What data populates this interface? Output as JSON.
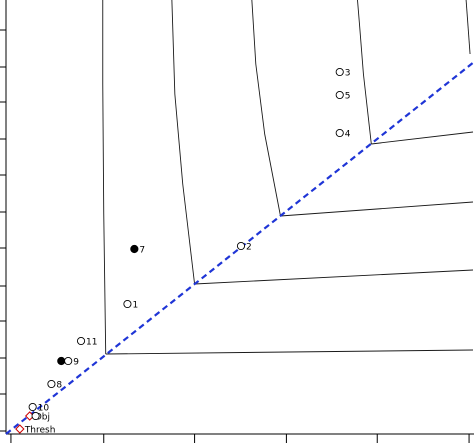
{
  "chart_data": {
    "type": "scatter",
    "title": "",
    "xlabel": "",
    "ylabel": "",
    "xlim": [
      0,
      474
    ],
    "ylim": [
      0,
      434
    ],
    "grid": false,
    "legend": "none",
    "colors": {
      "axis": "#000000",
      "curve": "#1a1a1a",
      "threshold": "#1f35d6",
      "marker_open": "#000000",
      "marker_filled": "#000000",
      "diamond": "#cc0000"
    },
    "threshold_line": {
      "x": [
        0,
        474
      ],
      "y": [
        0,
        372
      ]
    },
    "isolines": [
      {
        "x": [
          101,
          473
        ],
        "y": [
          80,
          84
        ]
      },
      {
        "x": [
          101,
          99,
          98,
          98
        ],
        "y": [
          80,
          220,
          350,
          434
        ]
      },
      {
        "x": [
          191,
          473
        ],
        "y": [
          150,
          164
        ]
      },
      {
        "x": [
          191,
          179,
          171,
          168
        ],
        "y": [
          150,
          250,
          340,
          434
        ]
      },
      {
        "x": [
          278,
          473
        ],
        "y": [
          218,
          232
        ]
      },
      {
        "x": [
          278,
          262,
          253,
          249
        ],
        "y": [
          218,
          300,
          370,
          434
        ]
      },
      {
        "x": [
          370,
          473
        ],
        "y": [
          290,
          302
        ]
      },
      {
        "x": [
          370,
          362,
          358,
          356
        ],
        "y": [
          290,
          360,
          410,
          434
        ]
      },
      {
        "x": [
          470,
          466
        ],
        "y": [
          380,
          434
        ]
      }
    ],
    "points": [
      {
        "label": "3",
        "x": 338,
        "y": 362,
        "marker": "open-circle"
      },
      {
        "label": "5",
        "x": 338,
        "y": 339,
        "marker": "open-circle"
      },
      {
        "label": "4",
        "x": 338,
        "y": 301,
        "marker": "open-circle"
      },
      {
        "label": "7",
        "x": 130,
        "y": 185,
        "marker": "filled-circle"
      },
      {
        "label": "2",
        "x": 238,
        "y": 188,
        "marker": "open-circle"
      },
      {
        "label": "1",
        "x": 123,
        "y": 130,
        "marker": "open-circle"
      },
      {
        "label": "11",
        "x": 76,
        "y": 93,
        "marker": "open-circle"
      },
      {
        "label": "",
        "x": 56,
        "y": 73,
        "marker": "filled-circle"
      },
      {
        "label": "9",
        "x": 63,
        "y": 73,
        "marker": "open-circle"
      },
      {
        "label": "8",
        "x": 46,
        "y": 50,
        "marker": "open-circle"
      },
      {
        "label": "10",
        "x": 27,
        "y": 27,
        "marker": "open-circle"
      },
      {
        "label": "Obj",
        "x": 24,
        "y": 18,
        "marker": "diamond"
      },
      {
        "label": "",
        "x": 30,
        "y": 18,
        "marker": "open-circle"
      },
      {
        "label": "Thresh",
        "x": 14,
        "y": 5,
        "marker": "diamond"
      }
    ],
    "x_ticks": [
      5,
      99,
      191,
      284,
      376,
      469
    ],
    "y_ticks": [
      3,
      40,
      76,
      113,
      148,
      186,
      222,
      259,
      295,
      332,
      367,
      404
    ]
  }
}
